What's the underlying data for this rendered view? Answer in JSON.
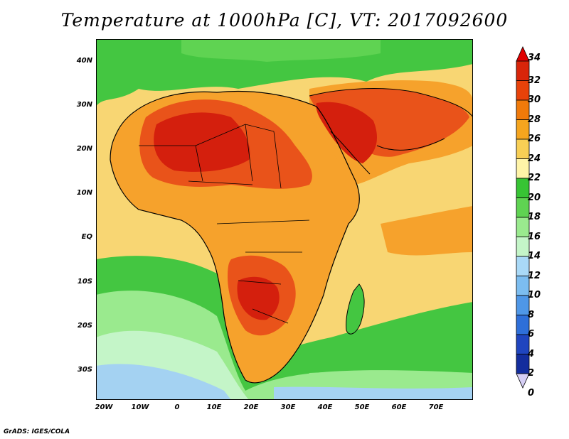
{
  "title": "Temperature at 1000hPa [C], VT: 2017092600",
  "credit": "GrADS: IGES/COLA",
  "lat_labels": [
    "40N",
    "30N",
    "20N",
    "10N",
    "EQ",
    "10S",
    "20S",
    "30S"
  ],
  "lon_labels": [
    "20W",
    "10W",
    "0",
    "10E",
    "20E",
    "30E",
    "40E",
    "50E",
    "60E",
    "70E"
  ],
  "colorbar": {
    "levels": [
      "34",
      "32",
      "30",
      "28",
      "26",
      "24",
      "22",
      "20",
      "18",
      "16",
      "14",
      "12",
      "10",
      "8",
      "6",
      "4",
      "2",
      "0"
    ],
    "colors": [
      "#ff0000",
      "#d8250a",
      "#e8420a",
      "#f07a0a",
      "#f5a51e",
      "#f8cf55",
      "#fff4a8",
      "#37c434",
      "#5fd352",
      "#9aea8e",
      "#c4f5c8",
      "#a9d9f7",
      "#7cbdf0",
      "#4f97e7",
      "#2e6fd9",
      "#1f45bf",
      "#132d9d",
      "#0a1870"
    ],
    "top_arrow_color": "#e00000",
    "bottom_arrow_color": "#d6cff5"
  },
  "palette": {
    "ocean_cool": "#a4d2f2",
    "ocean_green": "#44c641",
    "mild": "#f8d673",
    "warm": "#f6a22c",
    "hot": "#e9531a",
    "very_hot": "#d41f0d",
    "boundary": "#000000"
  }
}
